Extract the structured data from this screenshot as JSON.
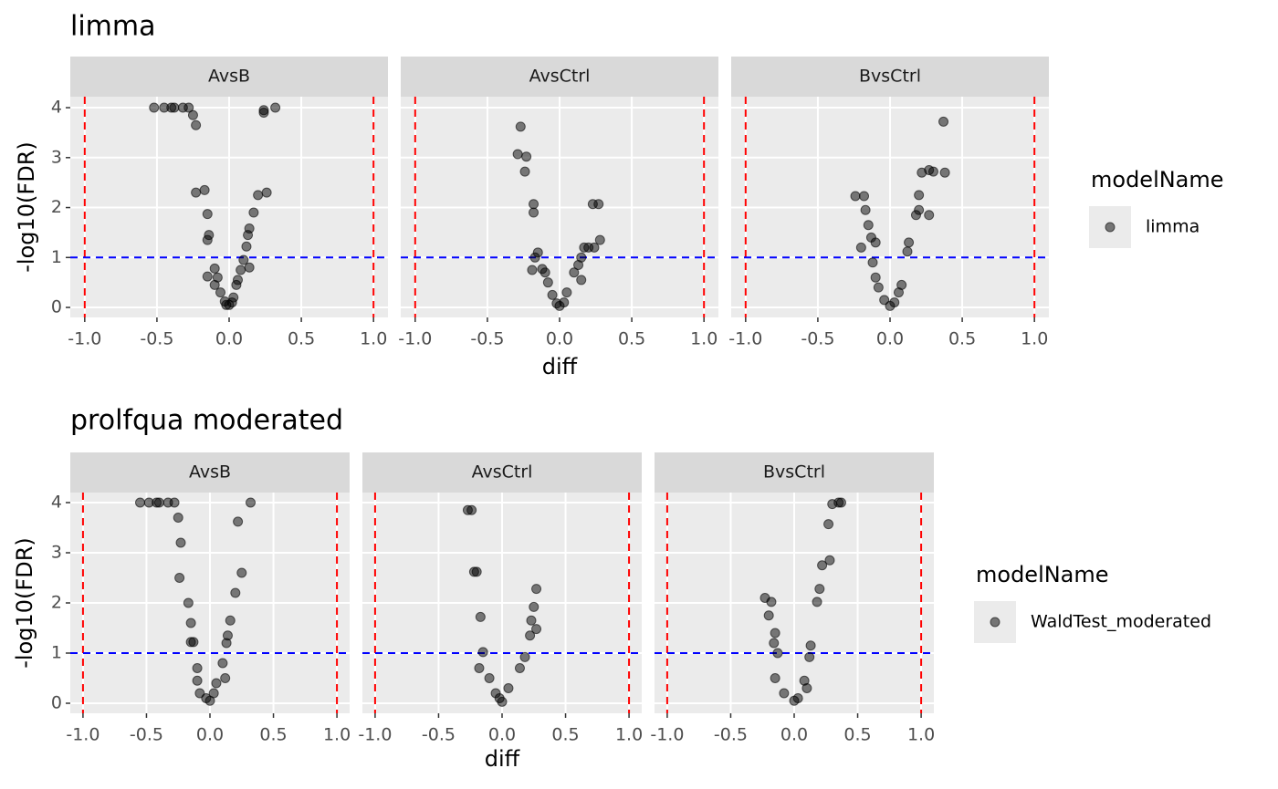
{
  "chart_data": [
    {
      "type": "scatter",
      "title": "limma",
      "xlabel": "diff",
      "ylabel": "-log10(FDR)",
      "legend_title": "modelName",
      "series_name": "limma",
      "color": "#000000",
      "xlim": [
        -1.1,
        1.1
      ],
      "ylim": [
        -0.2,
        4.22
      ],
      "xticks": [
        {
          "value": -1,
          "label": "-1.0"
        },
        -0.5,
        {
          "value": 0,
          "label": "0.0"
        },
        0.5,
        {
          "value": 1,
          "label": "1.0"
        }
      ],
      "yticks": [
        0,
        1,
        2,
        3,
        4
      ],
      "grid": true,
      "vlines": [
        -1,
        1
      ],
      "vline_color": "#ff0000",
      "hline": 1,
      "hline_color": "#0000ff",
      "facets": [
        {
          "name": "AvsB",
          "x": [
            -0.52,
            -0.45,
            -0.4,
            -0.38,
            -0.32,
            -0.28,
            -0.25,
            -0.23,
            0.24,
            0.24,
            0.32,
            -0.23,
            -0.17,
            -0.15,
            -0.14,
            -0.15,
            0.26,
            0.2,
            0.17,
            0.14,
            0.13,
            0.12,
            -0.1,
            -0.15,
            -0.08,
            -0.1,
            -0.06,
            0.1,
            0.08,
            0.14,
            0.05,
            0.03,
            0.0,
            -0.03,
            0.06,
            0.02,
            -0.02
          ],
          "y": [
            4,
            4,
            4,
            4,
            4,
            4,
            3.85,
            3.65,
            3.9,
            3.95,
            4,
            2.3,
            2.35,
            1.87,
            1.45,
            1.35,
            2.3,
            2.25,
            1.9,
            1.58,
            1.45,
            1.22,
            0.78,
            0.62,
            0.6,
            0.45,
            0.3,
            0.95,
            0.75,
            0.8,
            0.45,
            0.2,
            0.05,
            0.12,
            0.55,
            0.1,
            0.05
          ]
        },
        {
          "name": "AvsCtrl",
          "x": [
            -0.27,
            -0.29,
            -0.23,
            -0.24,
            -0.18,
            -0.18,
            0.23,
            0.27,
            0.28,
            -0.15,
            -0.17,
            0.2,
            0.24,
            0.17,
            0.15,
            -0.19,
            -0.12,
            -0.1,
            -0.08,
            0.13,
            0.1,
            0.15,
            -0.05,
            0.05,
            0.0,
            -0.02,
            0.03
          ],
          "y": [
            3.62,
            3.07,
            3.02,
            2.72,
            2.07,
            1.9,
            2.07,
            2.07,
            1.35,
            1.1,
            1.0,
            1.2,
            1.2,
            1.2,
            1.0,
            0.75,
            0.77,
            0.7,
            0.5,
            0.85,
            0.7,
            0.55,
            0.25,
            0.3,
            0.03,
            0.08,
            0.1
          ]
        },
        {
          "name": "BvsCtrl",
          "x": [
            0.37,
            0.38,
            0.27,
            0.3,
            0.22,
            0.2,
            0.2,
            0.18,
            0.27,
            -0.24,
            -0.18,
            -0.17,
            -0.15,
            -0.13,
            -0.2,
            -0.1,
            0.13,
            0.12,
            -0.12,
            -0.1,
            -0.08,
            0.08,
            0.06,
            -0.04,
            0.0,
            0.03
          ],
          "y": [
            3.72,
            2.7,
            2.75,
            2.72,
            2.7,
            2.25,
            1.95,
            1.85,
            1.85,
            2.23,
            2.23,
            1.95,
            1.65,
            1.4,
            1.2,
            1.3,
            1.3,
            1.12,
            0.9,
            0.6,
            0.4,
            0.45,
            0.3,
            0.15,
            0.03,
            0.1
          ]
        }
      ]
    },
    {
      "type": "scatter",
      "title": "prolfqua moderated",
      "xlabel": "diff",
      "ylabel": "-log10(FDR)",
      "legend_title": "modelName",
      "series_name": "WaldTest_moderated",
      "color": "#000000",
      "xlim": [
        -1.1,
        1.1
      ],
      "ylim": [
        -0.2,
        4.2
      ],
      "xticks": [
        {
          "value": -1,
          "label": "-1.0"
        },
        -0.5,
        {
          "value": 0,
          "label": "0.0"
        },
        0.5,
        {
          "value": 1,
          "label": "1.0"
        }
      ],
      "yticks": [
        0,
        1,
        2,
        3,
        4
      ],
      "grid": true,
      "vlines": [
        -1,
        1
      ],
      "vline_color": "#ff0000",
      "hline": 1,
      "hline_color": "#0000ff",
      "facets": [
        {
          "name": "AvsB",
          "x": [
            -0.55,
            -0.48,
            -0.42,
            -0.4,
            -0.33,
            -0.28,
            0.22,
            0.32,
            -0.25,
            -0.23,
            -0.24,
            -0.17,
            -0.15,
            -0.15,
            -0.13,
            0.25,
            0.2,
            0.16,
            0.14,
            0.13,
            -0.1,
            -0.1,
            -0.08,
            0.1,
            0.12,
            0.05,
            0.0,
            -0.03,
            0.03
          ],
          "y": [
            4,
            4,
            4,
            4,
            4,
            4,
            3.62,
            4,
            3.7,
            3.2,
            2.5,
            2.0,
            1.6,
            1.22,
            1.22,
            2.6,
            2.2,
            1.65,
            1.35,
            1.2,
            0.7,
            0.45,
            0.2,
            0.8,
            0.5,
            0.4,
            0.05,
            0.1,
            0.2
          ]
        },
        {
          "name": "AvsCtrl",
          "x": [
            -0.27,
            -0.24,
            -0.22,
            -0.2,
            -0.17,
            0.27,
            0.25,
            0.27,
            0.23,
            0.22,
            -0.15,
            -0.18,
            0.18,
            -0.1,
            0.14,
            -0.05,
            0.05,
            0.0,
            -0.02
          ],
          "y": [
            3.85,
            3.85,
            2.62,
            2.62,
            1.72,
            2.28,
            1.92,
            1.48,
            1.65,
            1.35,
            1.02,
            0.7,
            0.92,
            0.5,
            0.7,
            0.2,
            0.3,
            0.03,
            0.1
          ]
        },
        {
          "name": "BvsCtrl",
          "x": [
            0.37,
            0.35,
            0.3,
            0.27,
            0.28,
            0.22,
            0.2,
            0.18,
            0.13,
            0.12,
            -0.23,
            -0.18,
            -0.2,
            -0.15,
            -0.16,
            -0.13,
            -0.15,
            0.08,
            0.1,
            -0.08,
            0.0,
            0.03
          ],
          "y": [
            4,
            4,
            3.97,
            3.57,
            2.85,
            2.75,
            2.28,
            2.02,
            1.15,
            0.92,
            2.1,
            2.02,
            1.75,
            1.4,
            1.2,
            1.0,
            0.5,
            0.45,
            0.3,
            0.2,
            0.05,
            0.1
          ]
        }
      ]
    }
  ]
}
